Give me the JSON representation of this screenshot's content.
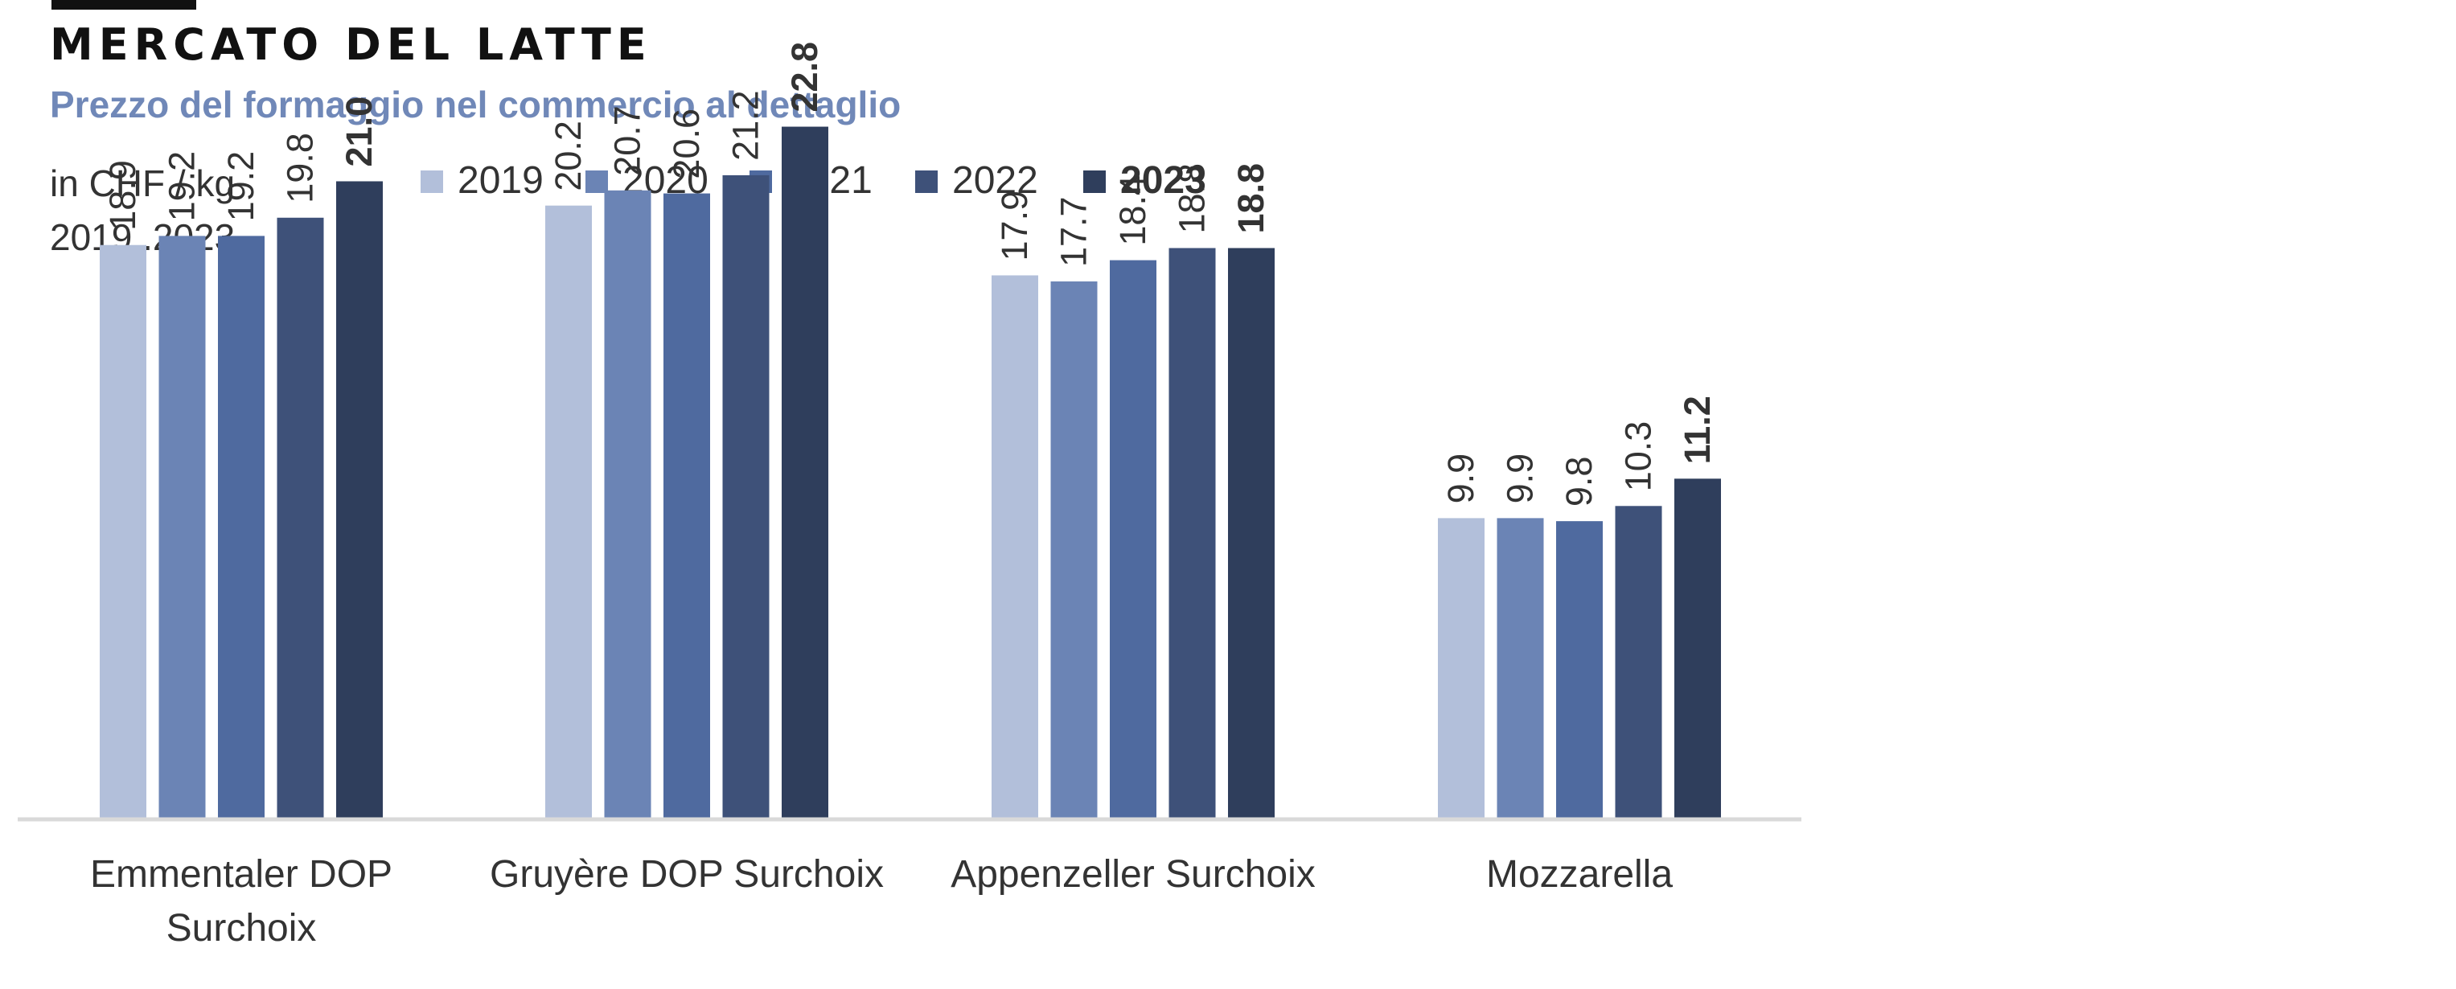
{
  "header": {
    "title": "MERCATO DEL LATTE",
    "subtitle": "Prezzo del formaggio nel commercio al dettaglio",
    "unit_line1": "in CHF / kg",
    "unit_line2": "2019..2023"
  },
  "colors": {
    "series": [
      "#b2bfda",
      "#6b84b5",
      "#4f6a9f",
      "#3e5179",
      "#2f3e5c"
    ],
    "axis": "#d9d9d9",
    "title_bar": "#111111"
  },
  "chart_data": {
    "type": "bar",
    "title": "Prezzo del formaggio nel commercio al dettaglio",
    "xlabel": "",
    "ylabel": "in CHF / kg",
    "ylim": [
      0,
      23
    ],
    "grid": false,
    "legend_position": "top",
    "categories": [
      [
        "Emmentaler DOP",
        "Surchoix"
      ],
      [
        "Gruyère DOP Surchoix"
      ],
      [
        "Appenzeller Surchoix"
      ],
      [
        "Mozzarella"
      ]
    ],
    "series": [
      {
        "name": "2019",
        "values": [
          18.9,
          20.2,
          17.9,
          9.9
        ],
        "labels": [
          "18.9",
          "20.2",
          "17.9",
          "9.9"
        ]
      },
      {
        "name": "2020",
        "values": [
          19.2,
          20.7,
          17.7,
          9.9
        ],
        "labels": [
          "19.2",
          "20.7",
          "17.7",
          "9.9"
        ]
      },
      {
        "name": "2021",
        "values": [
          19.2,
          20.6,
          18.4,
          9.8
        ],
        "labels": [
          "19.2",
          "20.6",
          "18.4",
          "9.8"
        ]
      },
      {
        "name": "2022",
        "values": [
          19.8,
          21.2,
          18.8,
          10.3
        ],
        "labels": [
          "19.8",
          "21.2",
          "18.8",
          "10.3"
        ]
      },
      {
        "name": "2023",
        "values": [
          21.0,
          22.8,
          18.8,
          11.2
        ],
        "labels": [
          "21.0",
          "22.8",
          "18.8",
          "11.2"
        ],
        "emphasis": true
      }
    ]
  }
}
